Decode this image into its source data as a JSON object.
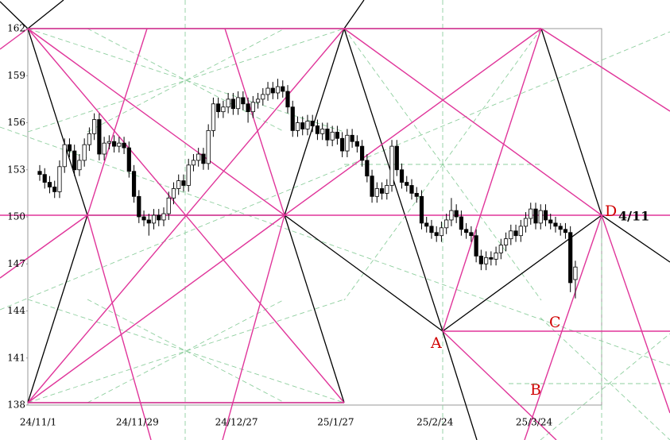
{
  "chart_data": {
    "type": "candlestick",
    "categories": [
      "24/11/1",
      null,
      null,
      null,
      null,
      null,
      null,
      null,
      null,
      null,
      null,
      null,
      null,
      null,
      null,
      null,
      null,
      null,
      null,
      null,
      "24/11/29",
      null,
      null,
      null,
      null,
      null,
      null,
      null,
      null,
      null,
      null,
      null,
      null,
      null,
      null,
      null,
      null,
      null,
      null,
      null,
      "24/12/27",
      null,
      null,
      null,
      null,
      null,
      null,
      null,
      null,
      null,
      null,
      null,
      null,
      null,
      null,
      null,
      null,
      null,
      null,
      null,
      "25/1/27",
      null,
      null,
      null,
      null,
      null,
      null,
      null,
      null,
      null,
      null,
      null,
      null,
      null,
      null,
      null,
      null,
      null,
      null,
      null,
      "25/2/24",
      null,
      null,
      null,
      null,
      null,
      null,
      null,
      null,
      null,
      null,
      null,
      null,
      null,
      null,
      null,
      null,
      null,
      null,
      null,
      "25/3/24",
      null,
      null,
      null,
      null,
      null,
      null,
      null,
      null
    ],
    "open": [
      152.9,
      152.7,
      152.2,
      151.9,
      151.6,
      153.2,
      154.6,
      154.2,
      153.0,
      153.6,
      154.6,
      155.3,
      156.2,
      154.0,
      154.7,
      154.8,
      154.5,
      154.7,
      154.4,
      152.9,
      151.3,
      150.0,
      149.8,
      149.6,
      150.1,
      149.8,
      150.2,
      151.2,
      151.8,
      152.3,
      152.0,
      153.3,
      153.6,
      154.0,
      153.4,
      155.5,
      157.2,
      156.7,
      157.0,
      157.5,
      156.9,
      157.6,
      157.2,
      156.7,
      157.3,
      157.5,
      157.8,
      158.2,
      157.9,
      158.3,
      158.0,
      157.0,
      155.5,
      156.0,
      155.6,
      156.1,
      155.8,
      155.3,
      155.6,
      154.9,
      155.4,
      155.0,
      154.2,
      155.2,
      154.8,
      154.5,
      153.6,
      152.6,
      151.3,
      151.8,
      151.5,
      152.0,
      154.5,
      153.0,
      152.2,
      152.0,
      151.5,
      151.3,
      149.6,
      149.4,
      149.0,
      148.8,
      149.3,
      149.8,
      150.4,
      150.0,
      149.2,
      149.0,
      148.8,
      147.5,
      147.0,
      147.4,
      147.3,
      147.7,
      148.2,
      148.6,
      149.1,
      148.8,
      149.4,
      149.9,
      150.5,
      149.6,
      150.4,
      149.8,
      149.6,
      149.4,
      149.2,
      149.0,
      146.0
    ],
    "high": [
      153.3,
      153.1,
      152.6,
      152.3,
      153.6,
      155.0,
      155.0,
      154.6,
      154.0,
      155.0,
      155.7,
      156.6,
      156.6,
      155.1,
      155.2,
      155.2,
      155.1,
      155.1,
      154.8,
      153.3,
      151.7,
      150.4,
      150.2,
      150.5,
      150.5,
      150.6,
      151.6,
      152.2,
      152.7,
      152.7,
      153.7,
      154.0,
      154.4,
      154.4,
      155.9,
      157.6,
      157.6,
      157.4,
      157.9,
      157.9,
      158.0,
      158.0,
      157.6,
      157.7,
      157.9,
      158.2,
      158.6,
      158.6,
      158.8,
      158.7,
      158.4,
      157.4,
      156.4,
      156.4,
      156.5,
      156.5,
      156.2,
      156.0,
      156.0,
      155.8,
      155.8,
      155.4,
      155.6,
      155.6,
      155.2,
      154.9,
      154.0,
      153.0,
      152.2,
      152.2,
      152.4,
      154.9,
      154.9,
      153.4,
      152.6,
      152.4,
      151.9,
      151.7,
      150.0,
      149.8,
      149.4,
      149.7,
      150.2,
      151.2,
      150.8,
      150.4,
      149.6,
      149.4,
      149.2,
      147.9,
      147.8,
      147.8,
      148.1,
      148.6,
      149.0,
      149.5,
      149.5,
      149.8,
      150.3,
      150.9,
      150.9,
      150.8,
      150.8,
      150.2,
      150.0,
      149.6,
      149.6,
      149.4,
      147.2
    ],
    "low": [
      152.3,
      151.8,
      151.5,
      151.2,
      151.2,
      152.8,
      153.8,
      152.6,
      152.6,
      153.2,
      154.2,
      154.9,
      153.6,
      153.6,
      154.3,
      154.1,
      154.1,
      154.0,
      152.5,
      150.9,
      149.6,
      149.4,
      148.8,
      149.2,
      149.4,
      149.4,
      149.8,
      150.8,
      151.4,
      151.6,
      151.6,
      152.9,
      153.2,
      153.0,
      153.0,
      155.1,
      156.3,
      156.3,
      156.6,
      156.5,
      156.5,
      156.8,
      156.0,
      156.3,
      156.9,
      157.1,
      157.4,
      157.5,
      157.5,
      157.6,
      156.6,
      155.1,
      155.1,
      155.2,
      155.2,
      155.4,
      154.9,
      154.9,
      154.5,
      154.5,
      154.6,
      153.8,
      153.8,
      154.4,
      154.1,
      153.2,
      152.2,
      150.9,
      150.9,
      151.1,
      151.1,
      151.6,
      152.6,
      151.8,
      151.6,
      151.1,
      150.9,
      149.2,
      149.0,
      148.6,
      148.4,
      148.4,
      148.9,
      149.4,
      149.6,
      148.8,
      148.6,
      148.4,
      147.1,
      146.6,
      146.6,
      146.9,
      146.9,
      147.3,
      147.8,
      148.2,
      148.4,
      148.4,
      149.0,
      149.5,
      149.2,
      149.2,
      149.4,
      149.2,
      149.0,
      148.8,
      148.6,
      145.2,
      144.8
    ],
    "close": [
      152.7,
      152.2,
      151.9,
      151.6,
      153.2,
      154.6,
      154.2,
      153.0,
      153.6,
      154.6,
      155.3,
      156.2,
      154.0,
      154.7,
      154.8,
      154.5,
      154.7,
      154.4,
      152.9,
      151.3,
      150.0,
      149.8,
      149.6,
      150.1,
      149.8,
      150.2,
      151.2,
      151.8,
      152.3,
      152.0,
      153.3,
      153.6,
      154.0,
      153.4,
      155.5,
      157.2,
      156.7,
      157.0,
      157.5,
      156.9,
      157.6,
      157.2,
      156.7,
      157.3,
      157.5,
      157.8,
      158.2,
      157.9,
      158.3,
      158.0,
      157.0,
      155.5,
      156.0,
      155.6,
      156.1,
      155.8,
      155.3,
      155.6,
      154.9,
      155.4,
      155.0,
      154.2,
      155.2,
      154.8,
      154.5,
      153.6,
      152.6,
      151.3,
      151.8,
      151.5,
      152.0,
      154.5,
      153.0,
      152.2,
      152.0,
      151.5,
      151.3,
      149.6,
      149.4,
      149.0,
      148.8,
      149.3,
      149.8,
      150.4,
      150.0,
      149.2,
      149.0,
      148.8,
      147.5,
      147.0,
      147.4,
      147.3,
      147.7,
      148.2,
      148.6,
      149.1,
      148.8,
      149.4,
      149.9,
      150.5,
      149.6,
      150.4,
      149.8,
      149.6,
      149.4,
      149.2,
      149.0,
      145.8,
      146.8
    ],
    "up_color": "#ffffff",
    "down_color": "#000000",
    "ylim": [
      138,
      162
    ],
    "yticks": [
      138,
      141,
      144,
      147,
      150,
      153,
      156,
      159,
      162
    ],
    "annotations": [
      "A",
      "B",
      "C",
      "D",
      "4/11"
    ]
  }
}
